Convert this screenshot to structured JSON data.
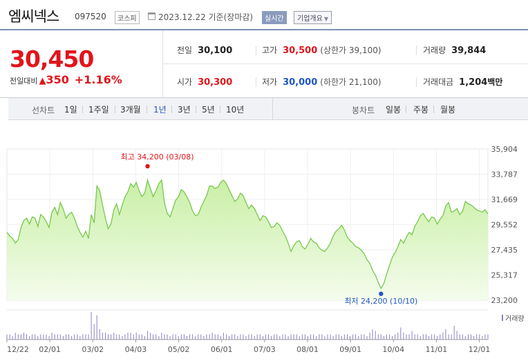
{
  "header": {
    "company_name": "엠씨넥스",
    "stock_code": "097520",
    "market": "코스피",
    "base_date": "2023.12.22  기준(장마감)",
    "realtime_label": "실시간",
    "company_info_label": "기업개요"
  },
  "quote": {
    "current_price": "30,450",
    "change_label": "전일대비",
    "change_symbol": "▲",
    "change_value": "350",
    "change_percent": "+1.16%",
    "prev_close_label": "전일",
    "prev_close": "30,100",
    "high_label": "고가",
    "high": "30,500",
    "upper_limit": "(상한가 39,100)",
    "volume_label": "거래량",
    "volume": "39,844",
    "open_label": "시가",
    "open": "30,300",
    "low_label": "저가",
    "low": "30,000",
    "lower_limit": "(하한가 21,100)",
    "amount_label": "거래대금",
    "amount": "1,204",
    "amount_unit": "백만"
  },
  "toolbar": {
    "line_chart_label": "선차트",
    "line_periods": [
      "1일",
      "1주일",
      "3개월",
      "1년",
      "3년",
      "5년",
      "10년"
    ],
    "active_period": "1년",
    "candle_chart_label": "봉차트",
    "candle_periods": [
      "일봉",
      "주봉",
      "월봉"
    ]
  },
  "colors": {
    "up": "#e0151b",
    "down": "#1f57c3",
    "line": "#76c84b",
    "area_top": "#c9efa6",
    "area_bottom": "#f4fcec",
    "volume": "#8d7fc7"
  },
  "chart_data": {
    "type": "area",
    "y_ticks": [
      "35,904",
      "33,787",
      "31,669",
      "29,552",
      "27,435",
      "25,317",
      "23,200"
    ],
    "ylim": [
      23200,
      35904
    ],
    "x_ticks": [
      "12/22",
      "02/01",
      "03/02",
      "04/03",
      "05/02",
      "06/01",
      "07/03",
      "08/01",
      "09/01",
      "10/04",
      "11/01",
      "12/01"
    ],
    "max_annotation": "최고 34,200 (03/08)",
    "min_annotation": "최저 24,200 (10/10)",
    "volume_legend": "거래량",
    "series": [
      {
        "values": [
          28900,
          28600,
          28400,
          28000,
          28300,
          29300,
          29900,
          30100,
          29600,
          30200,
          30100,
          29400,
          30400,
          30200,
          29800,
          29300,
          30600,
          31000,
          30400,
          31400,
          30900,
          30100,
          30400,
          30600,
          30100,
          29400,
          28900,
          28500,
          29000,
          28400,
          30400,
          29700,
          32800,
          32400,
          31200,
          30100,
          29200,
          29600,
          30800,
          31300,
          30400,
          31200,
          31900,
          32300,
          33000,
          32700,
          33100,
          32400,
          31900,
          32200,
          33300,
          32600,
          31900,
          32400,
          33000,
          33300,
          31400,
          30500,
          30200,
          30900,
          31600,
          31900,
          32500,
          32300,
          31900,
          31400,
          30700,
          30300,
          30400,
          31000,
          31500,
          32000,
          32800,
          32800,
          32600,
          32700,
          33100,
          33300,
          33000,
          32500,
          32000,
          31500,
          31700,
          32200,
          32000,
          31400,
          30900,
          31200,
          30900,
          30400,
          29900,
          30300,
          30200,
          29800,
          29300,
          29400,
          29700,
          29500,
          29000,
          28600,
          28000,
          27300,
          27800,
          28100,
          28200,
          27700,
          27500,
          27900,
          28400,
          28100,
          28000,
          27600,
          27400,
          27300,
          27600,
          28000,
          28600,
          29000,
          29200,
          29500,
          29100,
          28500,
          28200,
          28000,
          27700,
          27600,
          27400,
          27100,
          26600,
          26300,
          25700,
          25300,
          24700,
          24200,
          24600,
          25400,
          26100,
          26800,
          27200,
          27700,
          28300,
          28000,
          28500,
          28900,
          28700,
          29400,
          29800,
          30300,
          30500,
          30100,
          29800,
          30200,
          30100,
          29600,
          30000,
          30300,
          31100,
          31400,
          30600,
          30700,
          30900,
          30400,
          30700,
          31500,
          31300,
          31200,
          31000,
          30800,
          30700,
          30600,
          30800,
          30450
        ]
      },
      {
        "name": "거래량",
        "values": [
          3,
          3,
          2,
          4,
          3,
          3,
          4,
          3,
          2,
          3,
          3,
          2,
          3,
          3,
          3,
          2,
          4,
          3,
          3,
          3,
          2,
          3,
          3,
          2,
          3,
          3,
          2,
          3,
          3,
          3,
          16,
          9,
          14,
          6,
          4,
          4,
          3,
          3,
          4,
          3,
          3,
          2,
          3,
          4,
          4,
          3,
          4,
          3,
          3,
          2,
          5,
          4,
          3,
          3,
          2,
          4,
          3,
          3,
          2,
          3,
          3,
          2,
          3,
          3,
          2,
          3,
          3,
          2,
          3,
          3,
          2,
          3,
          3,
          4,
          3,
          3,
          2,
          4,
          3,
          2,
          3,
          3,
          2,
          3,
          3,
          2,
          3,
          3,
          2,
          3,
          3,
          2,
          3,
          3,
          2,
          3,
          3,
          2,
          3,
          3,
          2,
          3,
          3,
          3,
          2,
          3,
          3,
          2,
          3,
          3,
          2,
          3,
          3,
          2,
          3,
          3,
          2,
          3,
          3,
          2,
          3,
          3,
          2,
          3,
          3,
          2,
          3,
          3,
          2,
          4,
          6,
          5,
          3,
          3,
          2,
          3,
          3,
          2,
          3,
          4,
          7,
          4,
          3,
          3,
          5,
          3,
          3,
          2,
          3,
          3,
          2,
          3,
          3,
          2,
          3,
          4,
          6,
          3,
          3,
          8,
          5,
          3,
          3,
          2,
          3,
          3,
          2,
          3,
          3,
          2,
          3,
          3
        ]
      }
    ]
  }
}
